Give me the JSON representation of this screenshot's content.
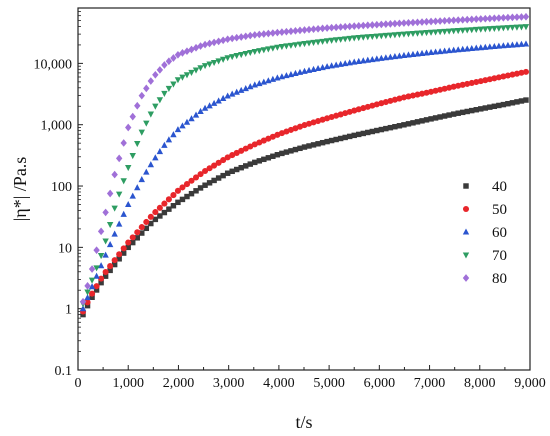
{
  "chart_data": {
    "type": "scatter",
    "xlabel": "t/s",
    "ylabel": "|η*| /Pa.s",
    "xlim": [
      0,
      9000
    ],
    "ylim": [
      0.1,
      80000
    ],
    "y_scale": "log",
    "grid": false,
    "legend_position": "right",
    "x_ticks": [
      {
        "value": 0,
        "label": "0"
      },
      {
        "value": 1000,
        "label": "1,000"
      },
      {
        "value": 2000,
        "label": "2,000"
      },
      {
        "value": 3000,
        "label": "3,000"
      },
      {
        "value": 4000,
        "label": "4,000"
      },
      {
        "value": 5000,
        "label": "5,000"
      },
      {
        "value": 6000,
        "label": "6,000"
      },
      {
        "value": 7000,
        "label": "7,000"
      },
      {
        "value": 8000,
        "label": "8,000"
      },
      {
        "value": 9000,
        "label": "9,000"
      }
    ],
    "y_ticks": [
      {
        "value": 0.1,
        "label": "0.1"
      },
      {
        "value": 1,
        "label": "1"
      },
      {
        "value": 10,
        "label": "10"
      },
      {
        "value": 100,
        "label": "100"
      },
      {
        "value": 1000,
        "label": "1,000"
      },
      {
        "value": 10000,
        "label": "10,000"
      }
    ],
    "series": [
      {
        "name": "40",
        "color": "#3a3a3a",
        "marker": "square",
        "x": [
          100,
          250,
          500,
          750,
          1000,
          1500,
          2000,
          2500,
          3000,
          3500,
          4000,
          4500,
          5000,
          5500,
          6000,
          6500,
          7000,
          7500,
          8000,
          8500,
          9000
        ],
        "y": [
          0.8,
          1.4,
          3,
          5.5,
          10,
          27,
          55,
          100,
          165,
          240,
          330,
          430,
          540,
          670,
          820,
          1000,
          1230,
          1500,
          1800,
          2150,
          2600
        ]
      },
      {
        "name": "50",
        "color": "#e8262b",
        "marker": "circle",
        "x": [
          100,
          250,
          500,
          750,
          1000,
          1500,
          2000,
          2500,
          3000,
          3500,
          4000,
          4500,
          5000,
          5500,
          6000,
          6500,
          7000,
          7500,
          8000,
          8500,
          9000
        ],
        "y": [
          0.9,
          1.6,
          3.5,
          6.5,
          12,
          35,
          85,
          170,
          300,
          470,
          700,
          980,
          1300,
          1700,
          2200,
          2800,
          3400,
          4200,
          5100,
          6200,
          7500
        ]
      },
      {
        "name": "60",
        "color": "#2b55cf",
        "marker": "triangle-up",
        "x": [
          100,
          250,
          500,
          750,
          1000,
          1250,
          1500,
          1750,
          2000,
          2500,
          3000,
          3500,
          4000,
          4500,
          5000,
          5500,
          6000,
          6500,
          7000,
          7500,
          8000,
          8500,
          9000
        ],
        "y": [
          1.0,
          2.0,
          6,
          18,
          50,
          120,
          260,
          500,
          850,
          1800,
          3000,
          4400,
          5900,
          7400,
          9000,
          10500,
          12000,
          13500,
          15000,
          16500,
          18000,
          19500,
          21000
        ]
      },
      {
        "name": "70",
        "color": "#2e9d62",
        "marker": "triangle-down",
        "x": [
          100,
          250,
          500,
          750,
          1000,
          1250,
          1500,
          1750,
          2000,
          2500,
          3000,
          3500,
          4000,
          4500,
          5000,
          5500,
          6000,
          6500,
          7000,
          7500,
          8000,
          8500,
          9000
        ],
        "y": [
          1.2,
          2.5,
          9,
          50,
          200,
          700,
          1800,
          3500,
          5500,
          9000,
          12500,
          15500,
          18500,
          21000,
          23500,
          26000,
          28000,
          30000,
          32000,
          34000,
          36000,
          38000,
          40000
        ]
      },
      {
        "name": "80",
        "color": "#a070d8",
        "marker": "diamond",
        "x": [
          100,
          250,
          500,
          750,
          1000,
          1250,
          1500,
          1750,
          2000,
          2500,
          3000,
          3500,
          4000,
          4500,
          5000,
          5500,
          6000,
          6500,
          7000,
          7500,
          8000,
          8500,
          9000
        ],
        "y": [
          1.3,
          3.5,
          25,
          180,
          900,
          2800,
          6000,
          10000,
          14000,
          20000,
          25000,
          29000,
          32000,
          35000,
          38000,
          40500,
          43000,
          45500,
          48000,
          50500,
          53000,
          55500,
          58000
        ]
      }
    ]
  }
}
